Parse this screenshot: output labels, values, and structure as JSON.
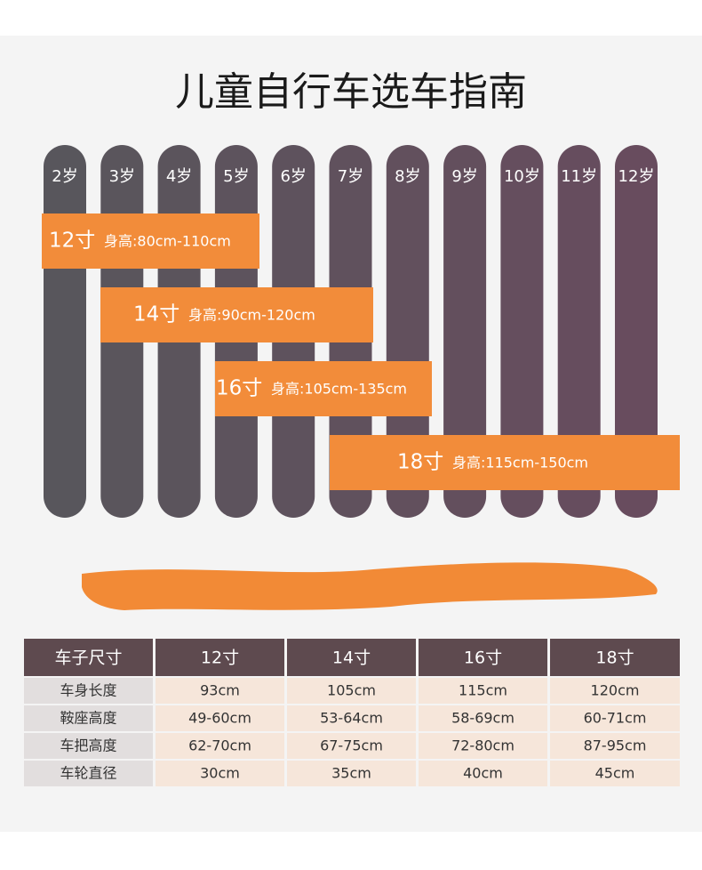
{
  "title": "儿童自行车选车指南",
  "ages": [
    "2岁",
    "3岁",
    "4岁",
    "5岁",
    "6岁",
    "7岁",
    "8岁",
    "9岁",
    "10岁",
    "11岁",
    "12岁"
  ],
  "bands": [
    {
      "size": "12寸",
      "height": "身高:80cm-110cm"
    },
    {
      "size": "14寸",
      "height": "身高:90cm-120cm"
    },
    {
      "size": "16寸",
      "height": "身高:105cm-135cm"
    },
    {
      "size": "18寸",
      "height": "身高:115cm-150cm"
    }
  ],
  "table": {
    "header": [
      "车子尺寸",
      "12寸",
      "14寸",
      "16寸",
      "18寸"
    ],
    "rows": [
      [
        "车身长度",
        "93cm",
        "105cm",
        "115cm",
        "120cm"
      ],
      [
        "鞍座高度",
        "49-60cm",
        "53-64cm",
        "58-69cm",
        "60-71cm"
      ],
      [
        "车把高度",
        "62-70cm",
        "67-75cm",
        "72-80cm",
        "87-95cm"
      ],
      [
        "车轮直径",
        "30cm",
        "35cm",
        "40cm",
        "45cm"
      ]
    ]
  }
}
